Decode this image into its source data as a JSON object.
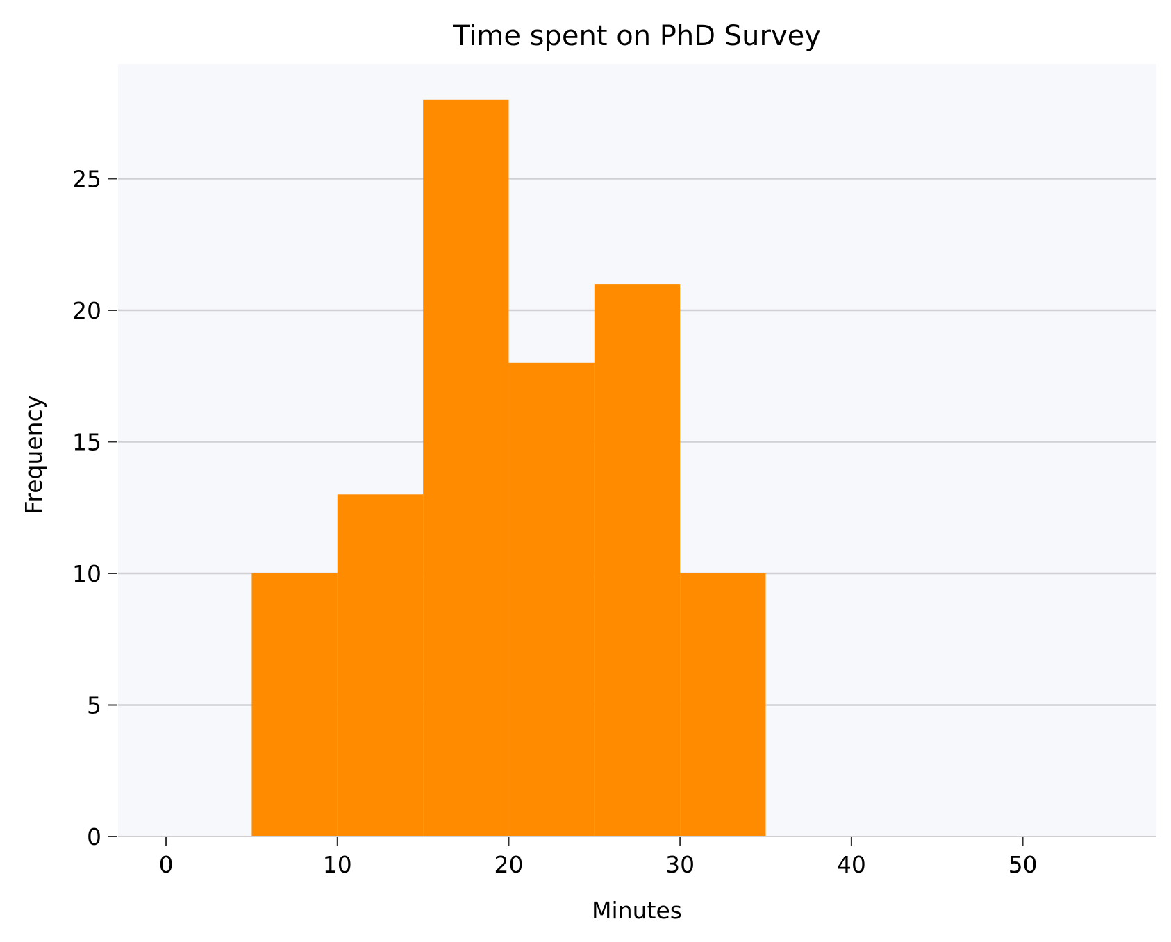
{
  "chart_data": {
    "type": "bar",
    "subtype": "histogram",
    "title": "Time spent on PhD Survey",
    "xlabel": "Minutes",
    "ylabel": "Frequency",
    "bins": [
      {
        "start": 5,
        "end": 10,
        "value": 10
      },
      {
        "start": 10,
        "end": 15,
        "value": 13
      },
      {
        "start": 15,
        "end": 20,
        "value": 28
      },
      {
        "start": 20,
        "end": 25,
        "value": 18
      },
      {
        "start": 25,
        "end": 30,
        "value": 21
      },
      {
        "start": 30,
        "end": 35,
        "value": 10
      }
    ],
    "xlim": [
      -2.8,
      57.8
    ],
    "ylim": [
      0,
      28
    ],
    "xticks": [
      0,
      10,
      20,
      30,
      40,
      50
    ],
    "yticks": [
      0,
      5,
      10,
      15,
      20,
      25
    ],
    "grid": "horizontal",
    "legend": "none",
    "colors": {
      "bar": "#ff8c00",
      "plot_background": "#f7f8fc",
      "grid": "#cfcfd4",
      "axis": "#cfcfd4",
      "tick": "#333333"
    }
  }
}
